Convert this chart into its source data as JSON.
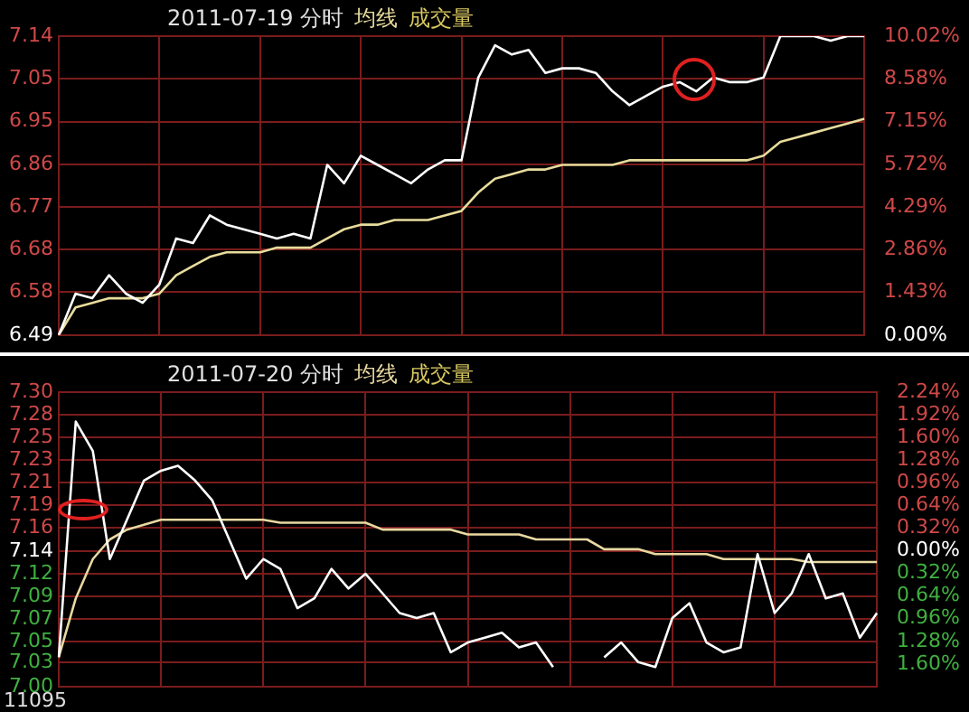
{
  "chart_data": [
    {
      "type": "line",
      "title": "2011-07-19 分时",
      "annotations": [
        "成交量"
      ],
      "categories": [
        null,
        null,
        null,
        null,
        null,
        null,
        null,
        null,
        null,
        null,
        null,
        null,
        null,
        null,
        null,
        null,
        null,
        null,
        null,
        null,
        null,
        null,
        null,
        null,
        null,
        null,
        null,
        null,
        null,
        null,
        null,
        null,
        null,
        null,
        null,
        null,
        null,
        null,
        null,
        null,
        null,
        null,
        null,
        null,
        null,
        null,
        null,
        null,
        null
      ],
      "series": [
        {
          "color": "#ffffff",
          "values": [
            6.49,
            6.58,
            6.57,
            6.62,
            6.58,
            6.56,
            6.6,
            6.7,
            6.69,
            6.75,
            6.73,
            6.72,
            6.71,
            6.7,
            6.71,
            6.7,
            6.86,
            6.82,
            6.88,
            6.86,
            6.84,
            6.82,
            6.85,
            6.87,
            6.87,
            7.05,
            7.12,
            7.1,
            7.11,
            7.06,
            7.07,
            7.07,
            7.06,
            7.02,
            6.99,
            7.01,
            7.03,
            7.04,
            7.02,
            7.05,
            7.04,
            7.04,
            7.05,
            7.14,
            7.14,
            7.14,
            7.13,
            7.14,
            7.14
          ]
        },
        {
          "name": "均线",
          "color": "#e8dc9c",
          "values": [
            6.49,
            6.55,
            6.56,
            6.57,
            6.57,
            6.57,
            6.58,
            6.62,
            6.64,
            6.66,
            6.67,
            6.67,
            6.67,
            6.68,
            6.68,
            6.68,
            6.7,
            6.72,
            6.73,
            6.73,
            6.74,
            6.74,
            6.74,
            6.75,
            6.76,
            6.8,
            6.83,
            6.84,
            6.85,
            6.85,
            6.86,
            6.86,
            6.86,
            6.86,
            6.87,
            6.87,
            6.87,
            6.87,
            6.87,
            6.87,
            6.87,
            6.87,
            6.88,
            6.91,
            6.92,
            6.93,
            6.94,
            6.95,
            6.96
          ]
        }
      ],
      "ylim": [
        6.49,
        7.14
      ],
      "yticks": [
        {
          "value": 6.49,
          "label": "6.49"
        },
        {
          "value": 6.583,
          "label": "6.58"
        },
        {
          "value": 6.676,
          "label": "6.68"
        },
        {
          "value": 6.769,
          "label": "6.77"
        },
        {
          "value": 6.861,
          "label": "6.86"
        },
        {
          "value": 6.954,
          "label": "6.95"
        },
        {
          "value": 7.047,
          "label": "7.05"
        },
        {
          "value": 7.14,
          "label": "7.14"
        }
      ],
      "y2lim": [
        0,
        10.02
      ],
      "y2ticks": [
        {
          "value": 0,
          "label": "0.00%"
        },
        {
          "value": 1.43,
          "label": "1.43%"
        },
        {
          "value": 2.86,
          "label": "2.86%"
        },
        {
          "value": 4.29,
          "label": "4.29%"
        },
        {
          "value": 5.72,
          "label": "5.72%"
        },
        {
          "value": 7.15,
          "label": "7.15%"
        },
        {
          "value": 8.58,
          "label": "8.58%"
        },
        {
          "value": 10.02,
          "label": "10.02%"
        }
      ],
      "grid": true,
      "marker": "none"
    },
    {
      "type": "line",
      "title": "2011-07-20 分时",
      "annotations": [
        "成交量",
        "11095"
      ],
      "categories": [
        null,
        null,
        null,
        null,
        null,
        null,
        null,
        null,
        null,
        null,
        null,
        null,
        null,
        null,
        null,
        null,
        null,
        null,
        null,
        null,
        null,
        null,
        null,
        null,
        null,
        null,
        null,
        null,
        null,
        null,
        null,
        null,
        null,
        null,
        null,
        null,
        null,
        null,
        null,
        null,
        null,
        null,
        null,
        null,
        null,
        null,
        null,
        null,
        null
      ],
      "series": [
        {
          "color": "#ffffff",
          "values": [
            7.03,
            7.27,
            7.24,
            7.13,
            7.17,
            7.21,
            7.22,
            7.225,
            7.21,
            7.19,
            7.15,
            7.11,
            7.13,
            7.12,
            7.08,
            7.09,
            7.12,
            7.1,
            7.115,
            7.095,
            7.075,
            7.07,
            7.075,
            7.035,
            7.045,
            7.05,
            7.055,
            7.04,
            7.045,
            7.02,
            null,
            null,
            7.03,
            7.045,
            7.025,
            7.02,
            7.07,
            7.085,
            7.045,
            7.035,
            7.04,
            7.135,
            7.075,
            7.095,
            7.135,
            7.09,
            7.095,
            7.05,
            7.075
          ]
        },
        {
          "name": "均线",
          "color": "#e8d8a0",
          "values": [
            7.03,
            7.09,
            7.13,
            7.15,
            7.16,
            7.165,
            7.17,
            7.17,
            7.17,
            7.17,
            7.17,
            7.17,
            7.17,
            7.167,
            7.167,
            7.167,
            7.167,
            7.167,
            7.167,
            7.16,
            7.16,
            7.16,
            7.16,
            7.16,
            7.155,
            7.155,
            7.155,
            7.155,
            7.15,
            7.15,
            7.15,
            7.15,
            7.14,
            7.14,
            7.14,
            7.135,
            7.135,
            7.135,
            7.135,
            7.13,
            7.13,
            7.13,
            7.13,
            7.13,
            7.127,
            7.127,
            7.127,
            7.127,
            7.127
          ]
        }
      ],
      "ylim": [
        7.0,
        7.3
      ],
      "yticks": [
        {
          "value": 7.3,
          "label": "7.30"
        },
        {
          "value": 7.277,
          "label": "7.28"
        },
        {
          "value": 7.254,
          "label": "7.25"
        },
        {
          "value": 7.231,
          "label": "7.23"
        },
        {
          "value": 7.208,
          "label": "7.21"
        },
        {
          "value": 7.185,
          "label": "7.19"
        },
        {
          "value": 7.162,
          "label": "7.16"
        },
        {
          "value": 7.138,
          "label": "7.14"
        },
        {
          "value": 7.115,
          "label": "7.12"
        },
        {
          "value": 7.092,
          "label": "7.09"
        },
        {
          "value": 7.069,
          "label": "7.07"
        },
        {
          "value": 7.046,
          "label": "7.05"
        },
        {
          "value": 7.025,
          "label": "7.03"
        },
        {
          "value": 7.0,
          "label": "7.00"
        }
      ],
      "y2lim": [
        -1.92,
        2.24
      ],
      "y2ticks": [
        {
          "value": 2.24,
          "label": "2.24%"
        },
        {
          "value": 1.92,
          "label": "1.92%"
        },
        {
          "value": 1.6,
          "label": "1.60%"
        },
        {
          "value": 1.28,
          "label": "1.28%"
        },
        {
          "value": 0.96,
          "label": "0.96%"
        },
        {
          "value": 0.64,
          "label": "0.64%"
        },
        {
          "value": 0.32,
          "label": "0.32%"
        },
        {
          "value": 0,
          "label": "0.00%"
        },
        {
          "value": -0.32,
          "label": "0.32%"
        },
        {
          "value": -0.64,
          "label": "0.64%"
        },
        {
          "value": -0.96,
          "label": "0.96%"
        },
        {
          "value": -1.28,
          "label": "1.28%"
        },
        {
          "value": -1.6,
          "label": "1.60%"
        }
      ],
      "grid": true,
      "marker": "none"
    }
  ]
}
